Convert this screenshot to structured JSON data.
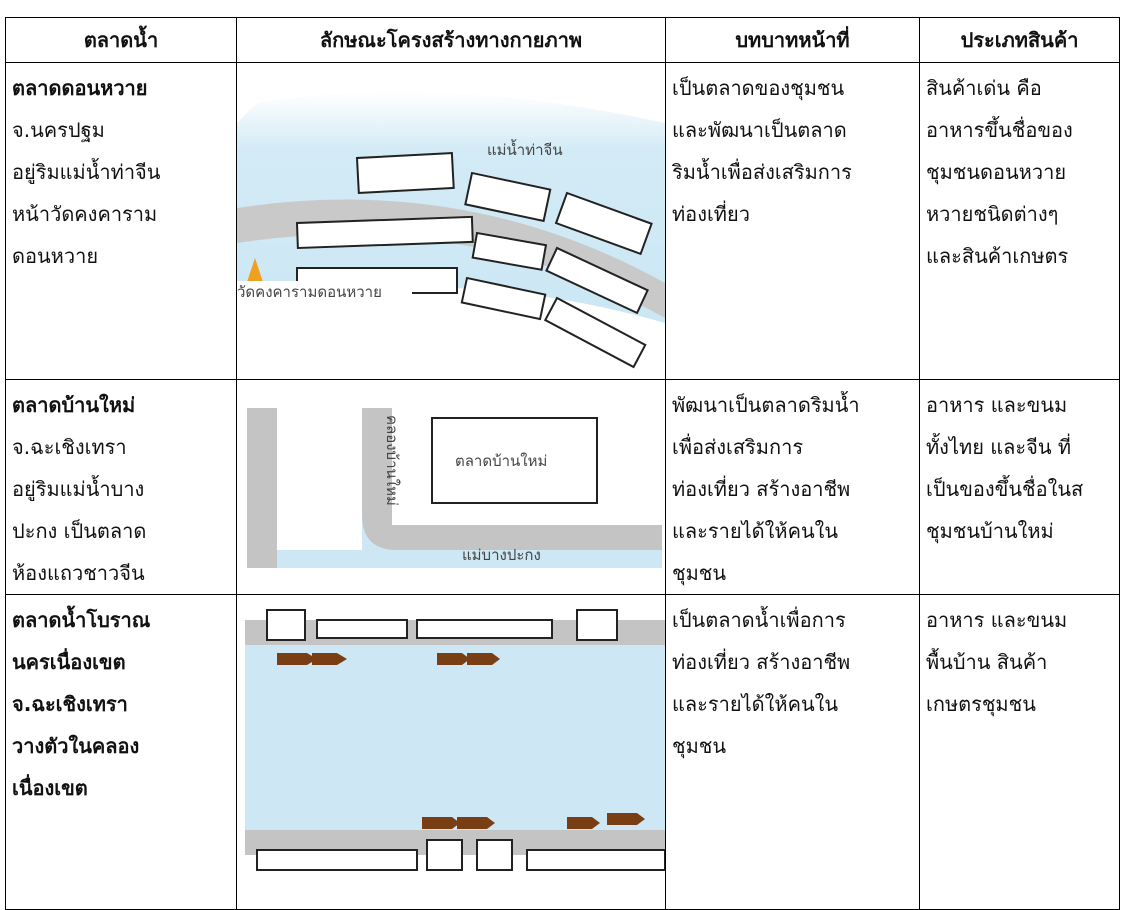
{
  "table": {
    "headers": [
      "ตลาดน้ำ",
      "ลักษณะโครงสร้างทางกายภาพ",
      "บทบาทหน้าที่",
      "ประเภทสินค้า"
    ],
    "rows": [
      {
        "market": [
          "ตลาดดอนหวาย"
        ],
        "details": [
          "จ.นครปฐม",
          "อยู่ริมแม่น้ำท่าจีน",
          "หน้าวัดคงคาราม",
          "ดอนหวาย"
        ],
        "diagram_labels": [
          "แม่น้ำท่าจีน",
          "วัดคงคารามดอนหวาย"
        ],
        "role": [
          "เป็นตลาดของชุมชน",
          "และพัฒนาเป็นตลาด",
          "ริมน้ำเพื่อส่งเสริมการ",
          "ท่องเที่ยว"
        ],
        "products": [
          "สินค้าเด่น คือ",
          "อาหารขึ้นชื่อของ",
          "ชุมชนดอนหวาย",
          "หวายชนิดต่างๆ",
          "และสินค้าเกษตร"
        ]
      },
      {
        "market": [
          "ตลาดบ้านใหม่"
        ],
        "details": [
          "จ.ฉะเชิงเทรา",
          "อยู่ริมแม่น้ำบาง",
          "ปะกง เป็นตลาด",
          "ห้องแถวชาวจีน"
        ],
        "diagram_labels": [
          "คลองบ้านใหม่",
          "ตลาดบ้านใหม่",
          "แม่บางปะกง"
        ],
        "role": [
          "พัฒนาเป็นตลาดริมน้ำ",
          "เพื่อส่งเสริมการ",
          "ท่องเที่ยว สร้างอาชีพ",
          "และรายได้ให้คนใน",
          "ชุมชน"
        ],
        "products": [
          "อาหาร และขนม",
          "ทั้งไทย และจีน ที่",
          "เป็นของขึ้นชื่อในส",
          "ชุมชนบ้านใหม่"
        ]
      },
      {
        "market": [
          "ตลาดน้ำโบราณ",
          "นครเนื่องเขต",
          "จ.ฉะเชิงเทรา",
          "วางตัวในคลอง",
          "เนื่องเขต"
        ],
        "role": [
          "เป็นตลาดน้ำเพื่อการ",
          "ท่องเที่ยว สร้างอาชีพ",
          "และรายได้ให้คนใน",
          "ชุมชน"
        ],
        "products": [
          "อาหาร และขนม",
          "พื้นบ้าน สินค้า",
          "เกษตรชุมชน"
        ]
      }
    ]
  }
}
